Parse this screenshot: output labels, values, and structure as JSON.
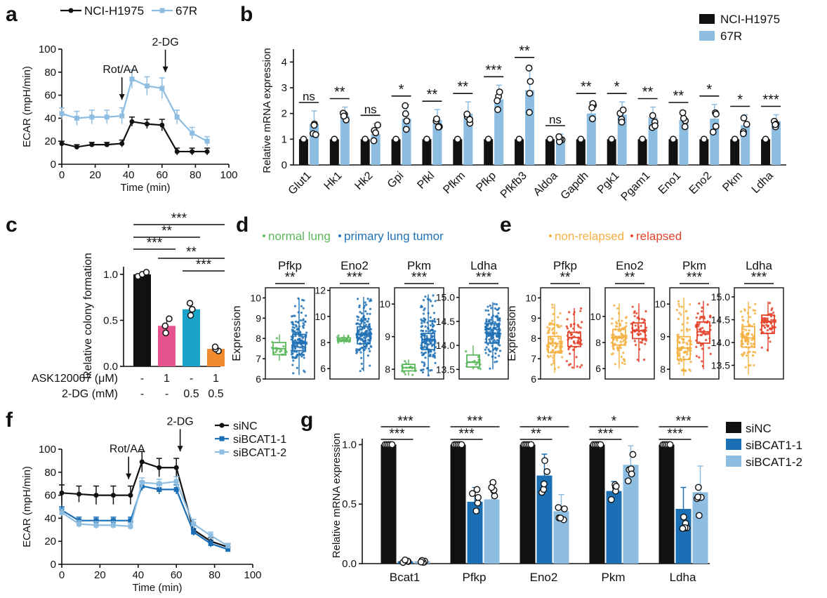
{
  "colors": {
    "black": "#111111",
    "lightblue": "#8ebde2",
    "darkblue": "#1a6fb5",
    "pink": "#e5548e",
    "teal": "#1aa3c8",
    "orange": "#f28b2e",
    "green": "#5cb85c",
    "blue": "#2171b5",
    "yellow": "#f4b143",
    "red": "#e4432b"
  },
  "panel_letters": [
    "a",
    "b",
    "c",
    "d",
    "e",
    "f",
    "g"
  ],
  "chart_data": [
    {
      "id": "a",
      "type": "line",
      "xlabel": "Time (min)",
      "ylabel": "ECAR (mpH/min)",
      "xlim": [
        0,
        100
      ],
      "ylim": [
        0,
        100
      ],
      "xticks": [
        "0",
        "20",
        "40",
        "60",
        "80",
        "100"
      ],
      "yticks": [
        "0",
        "20",
        "40",
        "60",
        "80",
        "100"
      ],
      "annotations": [
        "Rot/AA",
        "2-DG"
      ],
      "annotation_x": [
        36,
        62
      ],
      "x": [
        0,
        9,
        18,
        27,
        36,
        42,
        51,
        60,
        69,
        78,
        87
      ],
      "series": [
        {
          "name": "NCI-H1975",
          "color": "#111111",
          "values": [
            18,
            15,
            17,
            17,
            18,
            37,
            35,
            34,
            11,
            11,
            11
          ],
          "err": [
            2,
            2,
            2,
            2,
            3,
            4,
            4,
            5,
            3,
            3,
            3
          ]
        },
        {
          "name": "67R",
          "color": "#8ebde2",
          "values": [
            44,
            40,
            41,
            41,
            42,
            74,
            68,
            66,
            41,
            27,
            20
          ],
          "err": [
            5,
            6,
            6,
            6,
            7,
            8,
            8,
            9,
            6,
            5,
            4
          ]
        }
      ]
    },
    {
      "id": "b",
      "type": "bar",
      "ylabel": "Relative mRNA expression",
      "ylim": [
        0,
        4.5
      ],
      "yticks": [
        "0",
        "1",
        "2",
        "3",
        "4"
      ],
      "categories": [
        "Glut1",
        "Hk1",
        "Hk2",
        "Gpi",
        "Pfkl",
        "Pfkm",
        "Pfkp",
        "Pfkfb3",
        "Aldoa",
        "Gapdh",
        "Pgk1",
        "Pgam1",
        "Eno1",
        "Eno2",
        "Pkm",
        "Ldha"
      ],
      "significance": [
        "ns",
        "**",
        "ns",
        "*",
        "**",
        "**",
        "***",
        "**",
        "ns",
        "**",
        "*",
        "**",
        "**",
        "*",
        "*",
        "***"
      ],
      "series": [
        {
          "name": "NCI-H1975",
          "color": "#111111",
          "values": [
            1,
            1,
            1,
            1,
            1,
            1,
            1,
            1,
            1,
            1,
            1,
            1,
            1,
            1,
            1,
            1
          ]
        },
        {
          "name": "67R",
          "color": "#8ebde2",
          "values": [
            1.6,
            1.9,
            1.2,
            1.8,
            1.75,
            2.0,
            2.55,
            2.9,
            1.0,
            2.0,
            1.95,
            1.85,
            1.75,
            1.8,
            1.55,
            1.7
          ],
          "err": [
            0.5,
            0.35,
            0.4,
            0.55,
            0.4,
            0.45,
            0.55,
            0.95,
            0.2,
            0.45,
            0.5,
            0.4,
            0.35,
            0.55,
            0.4,
            0.25
          ]
        }
      ]
    },
    {
      "id": "c",
      "type": "bar",
      "ylabel": "Relative colony formation",
      "ylim": [
        0,
        1.25
      ],
      "yticks": [
        "0.0",
        "0.5",
        "1.0"
      ],
      "values": [
        1.0,
        0.44,
        0.62,
        0.19
      ],
      "err": [
        0.02,
        0.07,
        0.06,
        0.02
      ],
      "colors": [
        "#111111",
        "#e5548e",
        "#1aa3c8",
        "#f28b2e"
      ],
      "row_labels": [
        "ASK120067 (μM)",
        "2-DG (mM)"
      ],
      "row_values": [
        [
          "-",
          "1",
          "-",
          "1"
        ],
        [
          "-",
          "-",
          "0.5",
          "0.5"
        ]
      ],
      "brackets": [
        "***",
        "**",
        "***",
        "**",
        "***"
      ]
    },
    {
      "id": "d",
      "type": "box",
      "ylabel": "Expression",
      "legend": [
        "normal lung",
        "primary lung tumor"
      ],
      "legend_colors": [
        "#5cb85c",
        "#2171b5"
      ],
      "panels": [
        {
          "gene": "Pfkp",
          "sig": "**",
          "ylim": [
            6,
            10.5
          ],
          "yticks": [
            "6",
            "7",
            "8",
            "9",
            "10"
          ],
          "boxes": [
            [
              6.9,
              7.2,
              7.5,
              7.8,
              8.2
            ],
            [
              6.2,
              7.4,
              7.8,
              8.2,
              10
            ]
          ]
        },
        {
          "gene": "Eno2",
          "sig": "***",
          "ylim": [
            5.2,
            12.2
          ],
          "yticks": [
            "6",
            "8",
            "10",
            "12"
          ],
          "boxes": [
            [
              7.9,
              8.1,
              8.2,
              8.35,
              8.6
            ],
            [
              5.8,
              7.9,
              8.6,
              9.2,
              11.5
            ]
          ]
        },
        {
          "gene": "Pkm",
          "sig": "***",
          "ylim": [
            7.7,
            10.5
          ],
          "yticks": [
            "8",
            "9",
            "10"
          ],
          "boxes": [
            [
              7.8,
              7.95,
              8.05,
              8.15,
              8.3
            ],
            [
              7.8,
              8.6,
              8.9,
              9.1,
              10.3
            ]
          ]
        },
        {
          "gene": "Ldha",
          "sig": "***",
          "ylim": [
            13.3,
            15.2
          ],
          "yticks": [
            "13.5",
            "14.0",
            "14.5",
            "15.0"
          ],
          "boxes": [
            [
              13.5,
              13.55,
              13.65,
              13.8,
              14.0
            ],
            [
              13.5,
              14.05,
              14.25,
              14.45,
              14.9
            ]
          ]
        }
      ]
    },
    {
      "id": "e",
      "type": "box",
      "ylabel": "Expression",
      "legend": [
        "non-relapsed",
        "relapsed"
      ],
      "legend_colors": [
        "#f4b143",
        "#e4432b"
      ],
      "panels": [
        {
          "gene": "Pfkp",
          "sig": "**",
          "ylim": [
            6,
            10.5
          ],
          "yticks": [
            "6",
            "7",
            "8",
            "9",
            "10"
          ],
          "boxes": [
            [
              6.3,
              7.3,
              7.75,
              8.1,
              9.7
            ],
            [
              6.5,
              7.6,
              8.05,
              8.3,
              9.5
            ]
          ]
        },
        {
          "gene": "Eno2",
          "sig": "**",
          "ylim": [
            5.2,
            12.2
          ],
          "yticks": [
            "6",
            "8",
            "10"
          ],
          "boxes": [
            [
              6,
              7.8,
              8.4,
              9,
              11
            ],
            [
              6.5,
              8.3,
              8.9,
              9.5,
              11
            ]
          ]
        },
        {
          "gene": "Pkm",
          "sig": "***",
          "ylim": [
            7.7,
            10.5
          ],
          "yticks": [
            "8",
            "9",
            "10"
          ],
          "boxes": [
            [
              7.8,
              8.3,
              8.65,
              9.0,
              10.2
            ],
            [
              8.0,
              8.8,
              9.15,
              9.45,
              10.1
            ]
          ]
        },
        {
          "gene": "Ldha",
          "sig": "***",
          "ylim": [
            13.2,
            15.2
          ],
          "yticks": [
            "13.5",
            "14.0",
            "14.5",
            "15.0"
          ],
          "boxes": [
            [
              13.3,
              13.9,
              14.1,
              14.35,
              14.9
            ],
            [
              13.8,
              14.2,
              14.45,
              14.6,
              14.9
            ]
          ]
        }
      ]
    },
    {
      "id": "f",
      "type": "line",
      "xlabel": "Time (min)",
      "ylabel": "ECAR (mpH/min)",
      "xlim": [
        0,
        100
      ],
      "ylim": [
        0,
        100
      ],
      "xticks": [
        "0",
        "20",
        "40",
        "60",
        "80",
        "100"
      ],
      "yticks": [
        "0",
        "20",
        "40",
        "60",
        "80",
        "100"
      ],
      "annotations": [
        "Rot/AA",
        "2-DG"
      ],
      "annotation_x": [
        35,
        62
      ],
      "x": [
        0,
        9,
        18,
        27,
        36,
        42,
        51,
        60,
        69,
        78,
        87
      ],
      "series": [
        {
          "name": "siNC",
          "color": "#111111",
          "values": [
            62,
            61,
            60,
            60,
            60,
            89,
            84,
            84,
            30,
            20,
            15
          ],
          "err": [
            7,
            7,
            8,
            8,
            8,
            9,
            8,
            8,
            4,
            3,
            3
          ]
        },
        {
          "name": "siBCAT1-1",
          "color": "#1a6fb5",
          "values": [
            47,
            38,
            38,
            38,
            38,
            68,
            65,
            65,
            28,
            18,
            13
          ],
          "err": [
            3,
            3,
            3,
            3,
            3,
            4,
            4,
            4,
            3,
            3,
            2
          ]
        },
        {
          "name": "siBCAT1-2",
          "color": "#8ebde2",
          "values": [
            45,
            35,
            34,
            34,
            33,
            71,
            70,
            72,
            35,
            25,
            16
          ],
          "err": [
            3,
            3,
            3,
            3,
            3,
            4,
            4,
            4,
            4,
            3,
            2
          ]
        }
      ]
    },
    {
      "id": "g",
      "type": "bar",
      "ylabel": "Relative mRNA expression",
      "ylim": [
        0,
        1.05
      ],
      "yticks": [
        "0.0",
        "0.5",
        "1.0"
      ],
      "categories": [
        "Bcat1",
        "Pfkp",
        "Eno2",
        "Pkm",
        "Ldha"
      ],
      "brackets_top": [
        "***",
        "***",
        "***",
        "*",
        "***"
      ],
      "brackets_bottom": [
        "***",
        "***",
        "**",
        "***",
        "***"
      ],
      "series": [
        {
          "name": "siNC",
          "color": "#111111",
          "values": [
            1,
            1,
            1,
            1,
            1
          ],
          "err": [
            0,
            0,
            0,
            0,
            0
          ]
        },
        {
          "name": "siBCAT1-1",
          "color": "#1a6fb5",
          "values": [
            0.02,
            0.52,
            0.74,
            0.61,
            0.46
          ],
          "err": [
            0.01,
            0.12,
            0.18,
            0.08,
            0.18
          ]
        },
        {
          "name": "siBCAT1-2",
          "color": "#8ebde2",
          "values": [
            0.02,
            0.54,
            0.44,
            0.83,
            0.6
          ],
          "err": [
            0.01,
            0.15,
            0.14,
            0.16,
            0.22
          ]
        }
      ]
    }
  ]
}
